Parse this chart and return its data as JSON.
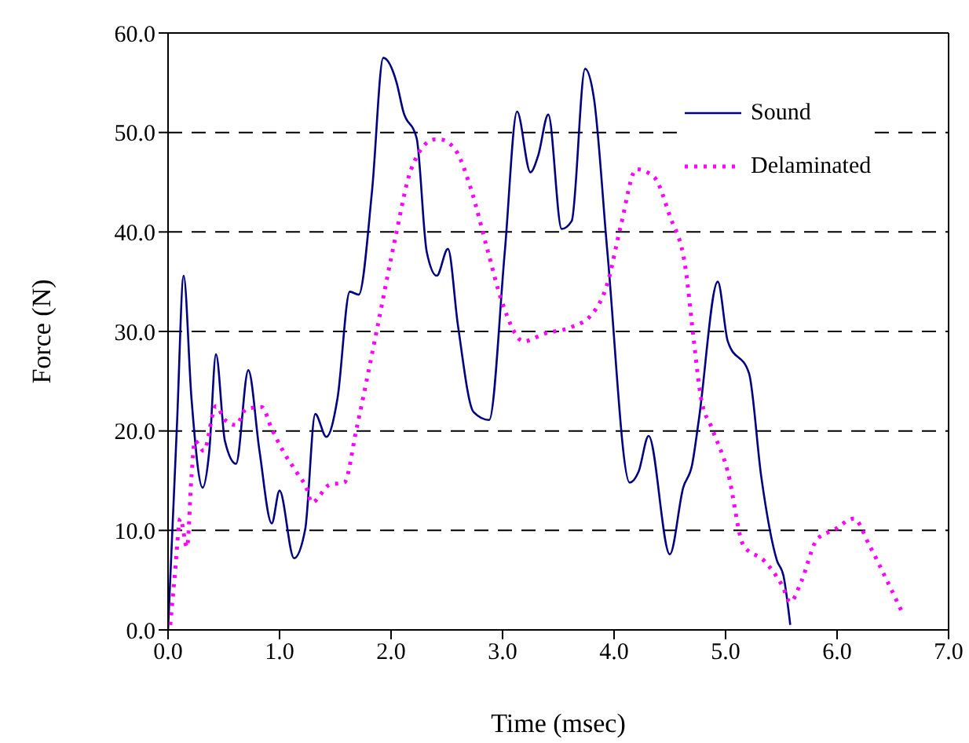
{
  "chart_data": {
    "type": "line",
    "xlabel": "Time (msec)",
    "ylabel": "Force (N)",
    "xlim": [
      0,
      7
    ],
    "xticks": [
      {
        "value": 0,
        "label": "0.0"
      },
      {
        "value": 1,
        "label": "1.0"
      },
      {
        "value": 2,
        "label": "2.0"
      },
      {
        "value": 3,
        "label": "3.0"
      },
      {
        "value": 4,
        "label": "4.0"
      },
      {
        "value": 5,
        "label": "5.0"
      },
      {
        "value": 6,
        "label": "6.0"
      },
      {
        "value": 7,
        "label": "7.0"
      }
    ],
    "ylim": [
      0,
      60
    ],
    "yticks": [
      {
        "value": 0,
        "label": "0.0"
      },
      {
        "value": 10,
        "label": "10.0"
      },
      {
        "value": 20,
        "label": "20.0"
      },
      {
        "value": 30,
        "label": "30.0"
      },
      {
        "value": 40,
        "label": "40.0"
      },
      {
        "value": 50,
        "label": "50.0"
      },
      {
        "value": 60,
        "label": "60.0"
      }
    ],
    "grid": "y",
    "legend": "top right",
    "marker": "none",
    "series": [
      {
        "name": "Sound",
        "color": "#000080",
        "line_style": "solid",
        "x": [
          0,
          0.08,
          0.14,
          0.21,
          0.31,
          0.37,
          0.43,
          0.51,
          0.61,
          0.72,
          0.82,
          0.93,
          1.0,
          1.13,
          1.23,
          1.32,
          1.42,
          1.52,
          1.63,
          1.71,
          1.83,
          1.93,
          2.05,
          2.11,
          2.23,
          2.32,
          2.41,
          2.51,
          2.6,
          2.74,
          2.88,
          3.02,
          3.13,
          3.25,
          3.32,
          3.41,
          3.53,
          3.62,
          3.74,
          3.82,
          3.94,
          4.14,
          4.22,
          4.31,
          4.5,
          4.62,
          4.7,
          4.76,
          4.93,
          5.02,
          5.21,
          5.32,
          5.46,
          5.52,
          5.58
        ],
        "values": [
          0,
          20.6,
          35.6,
          23.3,
          14.3,
          18,
          27.7,
          19,
          16.7,
          26.1,
          18,
          10.7,
          14,
          7.2,
          10.1,
          21.7,
          19.4,
          23.3,
          34,
          33.7,
          44.2,
          57.5,
          55,
          52.1,
          49.4,
          38,
          35.6,
          38.3,
          30.6,
          21.9,
          21.1,
          38,
          52.1,
          46,
          47.7,
          51.8,
          40.3,
          41.1,
          56.4,
          53.4,
          38,
          14.8,
          15.9,
          19.5,
          7.6,
          14.3,
          16.6,
          21.1,
          35,
          29,
          25.8,
          15.4,
          7,
          5.4,
          0.5
        ]
      },
      {
        "name": "Delaminated",
        "color": "#ff00ff",
        "line_style": "dotted",
        "x": [
          0.02,
          0.06,
          0.11,
          0.17,
          0.21,
          0.24,
          0.32,
          0.43,
          0.51,
          0.61,
          0.7,
          0.84,
          0.93,
          1.03,
          1.15,
          1.24,
          1.29,
          1.45,
          1.58,
          1.69,
          1.87,
          2.04,
          2.18,
          2.39,
          2.44,
          2.58,
          2.72,
          2.86,
          3.0,
          3.19,
          3.38,
          3.61,
          3.8,
          3.94,
          4.06,
          4.2,
          4.36,
          4.5,
          4.64,
          4.71,
          4.78,
          4.88,
          5.02,
          5.16,
          5.35,
          5.51,
          5.58,
          5.68,
          5.82,
          5.98,
          6.15,
          6.29,
          6.45,
          6.59
        ],
        "values": [
          0.5,
          5.4,
          11.2,
          8.3,
          15.4,
          19,
          18,
          22.5,
          21.1,
          20.6,
          22.2,
          22.4,
          20.2,
          18,
          15.9,
          14.3,
          12.8,
          14.6,
          14.8,
          20.2,
          30,
          39.5,
          46.3,
          49.3,
          49.3,
          48.2,
          44.2,
          38.4,
          32.8,
          29,
          29.8,
          30.4,
          31.7,
          34.8,
          40.6,
          46.3,
          45.5,
          41.6,
          36.4,
          29.6,
          23.3,
          20.2,
          15.9,
          8.5,
          6.9,
          4.4,
          2.8,
          4.9,
          9.1,
          10.1,
          11.2,
          8.5,
          4.9,
          1.6
        ]
      }
    ]
  }
}
